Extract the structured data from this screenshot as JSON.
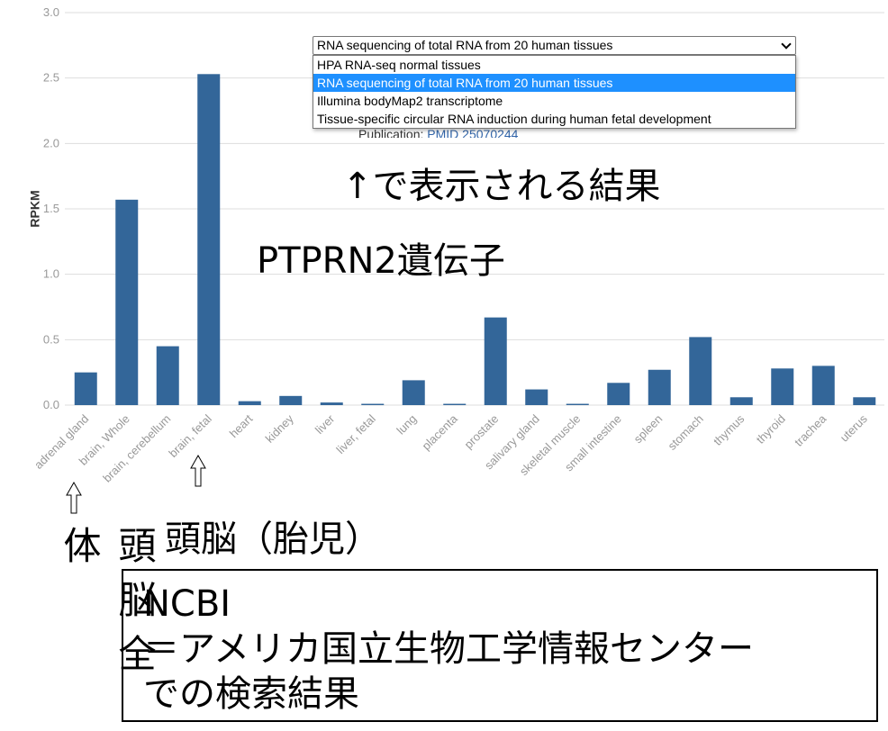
{
  "chart_data": {
    "type": "bar",
    "y_label": "RPKM",
    "categories": [
      "adrenal gland",
      "brain, Whole",
      "brain, cerebellum",
      "brain, fetal",
      "heart",
      "kidney",
      "liver",
      "liver, fetal",
      "lung",
      "placenta",
      "prostate",
      "salivary gland",
      "skeletal muscle",
      "small intestine",
      "spleen",
      "stomach",
      "thymus",
      "thyroid",
      "trachea",
      "uterus"
    ],
    "values": [
      0.25,
      1.57,
      0.45,
      2.53,
      0.03,
      0.07,
      0.02,
      0.01,
      0.19,
      0.01,
      0.67,
      0.12,
      0.01,
      0.17,
      0.27,
      0.52,
      0.06,
      0.28,
      0.3,
      0.06
    ],
    "color": "#336699",
    "ylim": [
      0,
      3
    ],
    "yticks": [
      {
        "value": 0,
        "label": "0.0"
      },
      0.5,
      {
        "value": 1,
        "label": "1.0"
      },
      1.5,
      {
        "value": 2,
        "label": "2.0"
      },
      2.5,
      {
        "value": 3,
        "label": "3.0"
      }
    ],
    "grid": true
  },
  "dropdown": {
    "selected": "RNA sequencing of total RNA from 20 human tissues",
    "options": [
      "HPA RNA-seq normal tissues",
      "RNA sequencing of total RNA from 20 human tissues",
      "Illumina bodyMap2 transcriptome",
      "Tissue-specific circular RNA induction during human fetal development"
    ],
    "highlighted": 1
  },
  "publication": {
    "label": "Publication:",
    "link": "PMID 25070244"
  },
  "annotations": {
    "result_caption": "↑で表示される結果",
    "gene": "PTPRN2遺伝子",
    "fetal_brain": "頭脳（胎児）",
    "whole_brain": "頭脳全体",
    "note": [
      "NCBI",
      "＝アメリカ国立生物工学情報センター",
      "での検索結果"
    ]
  }
}
